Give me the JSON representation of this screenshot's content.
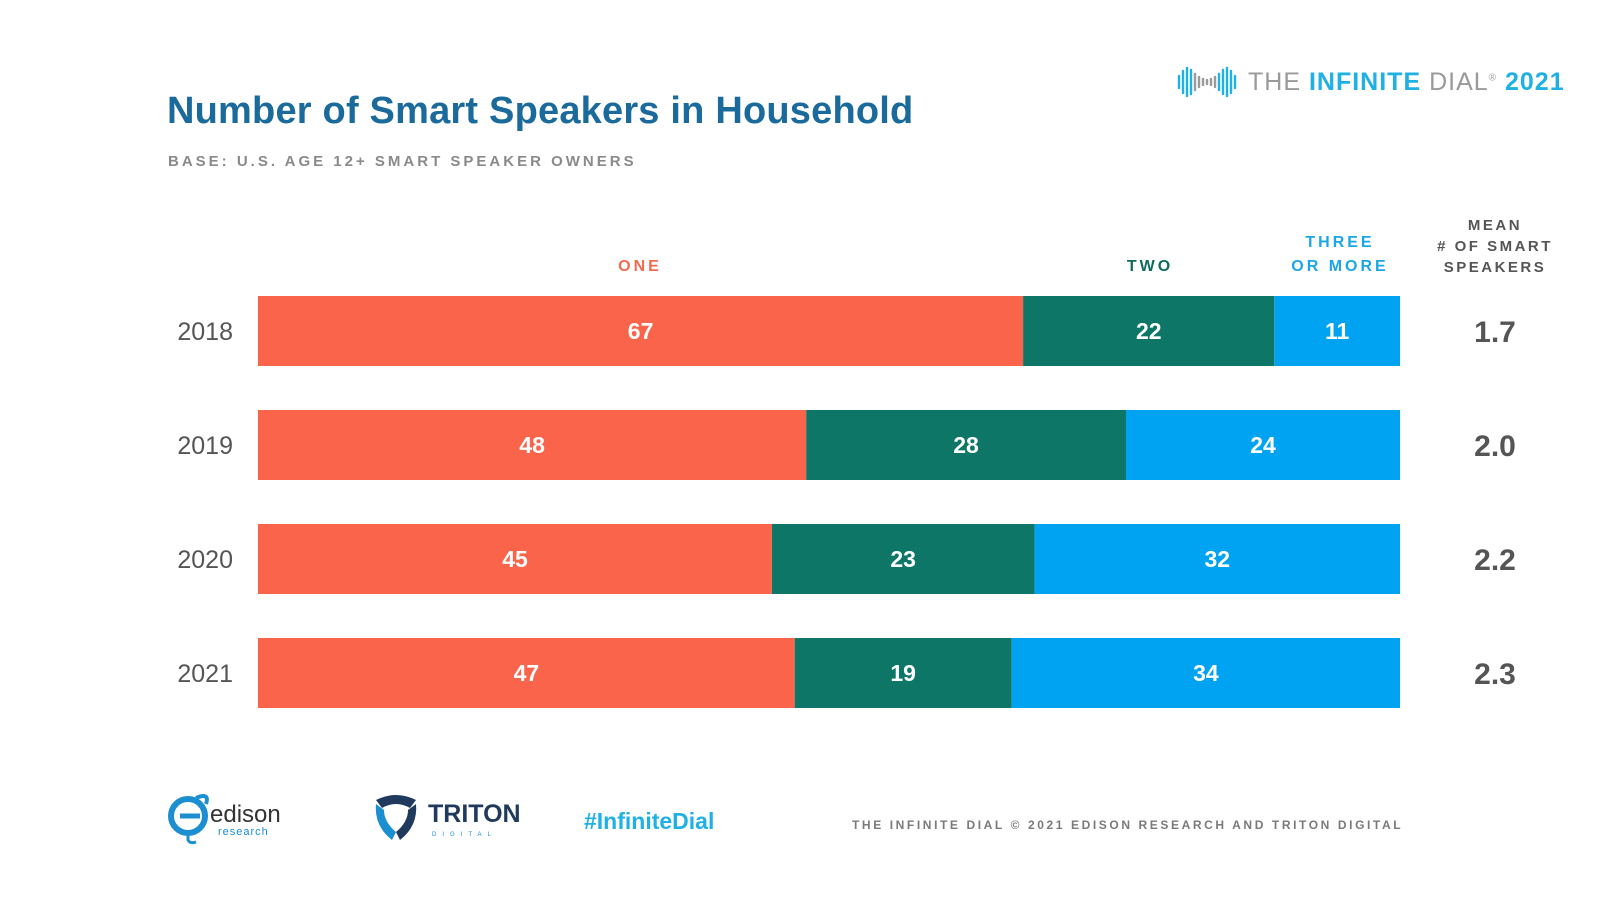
{
  "header": {
    "title": "Number of Smart Speakers in Household",
    "subtitle": "BASE: U.S. AGE 12+ SMART SPEAKER OWNERS",
    "brand": {
      "the": "THE",
      "infinite": "INFINITE",
      "dial": "DIAL",
      "reg": "®",
      "year": "2021",
      "icon": "infinity-waveform-icon"
    }
  },
  "chart_data": {
    "type": "bar",
    "orientation": "horizontal",
    "stacked": true,
    "percent_stacked": true,
    "categories": [
      "2018",
      "2019",
      "2020",
      "2021"
    ],
    "series": [
      {
        "name": "ONE",
        "color": "#f9644b",
        "values": [
          67,
          48,
          45,
          47
        ]
      },
      {
        "name": "TWO",
        "color": "#0e7667",
        "values": [
          22,
          28,
          23,
          19
        ]
      },
      {
        "name": "THREE OR MORE",
        "color": "#00a2f2",
        "values": [
          11,
          24,
          32,
          34
        ]
      }
    ],
    "legend_lines": {
      "one": [
        "ONE"
      ],
      "two": [
        "TWO"
      ],
      "three": [
        "THREE",
        "OR MORE"
      ]
    },
    "legend_colors": {
      "one": "#f26a4f",
      "two": "#0e6b5d",
      "three": "#1ba6e6"
    },
    "xlim": [
      0,
      100
    ],
    "grid": false,
    "legend_placement": "top"
  },
  "mean": {
    "header_lines": [
      "MEAN",
      "# OF SMART",
      "SPEAKERS"
    ],
    "values": [
      "1.7",
      "2.0",
      "2.2",
      "2.3"
    ]
  },
  "footer": {
    "edison_name": "edison",
    "edison_sub": "research",
    "triton_name": "TRITON",
    "triton_sub": "DIGITAL",
    "hashtag": "#InfiniteDial",
    "copyright": "THE INFINITE DIAL   © 2021 EDISON RESEARCH AND TRITON DIGITAL"
  }
}
